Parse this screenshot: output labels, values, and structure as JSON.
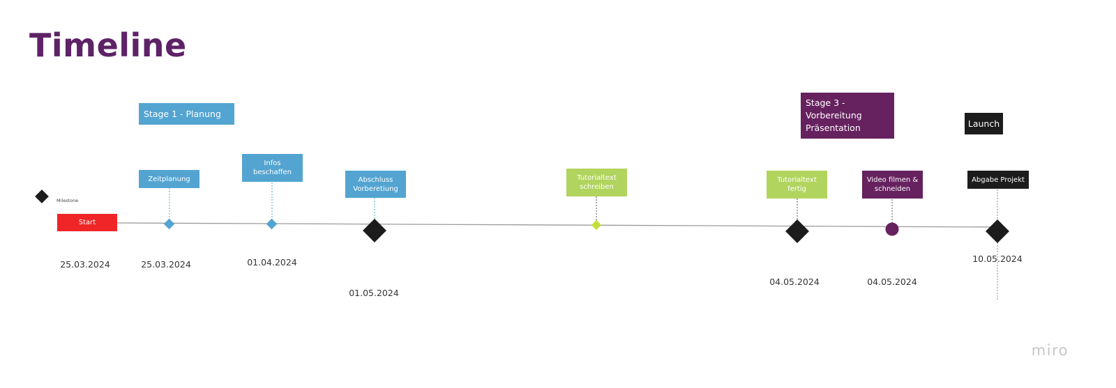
{
  "title": "Timeline",
  "legend": {
    "label": "Milestone"
  },
  "stages": {
    "stage1": "Stage 1 - Planung",
    "stage3": "Stage 3 - Vorbereitung Präsentation",
    "launch": "Launch"
  },
  "start": {
    "label": "Start",
    "date": "25.03.2024"
  },
  "events": [
    {
      "label": "Zeitplanung",
      "date": "25.03.2024",
      "color": "#53a4d1",
      "marker": "small-diamond"
    },
    {
      "label": "Infos beschaffen",
      "date": "01.04.2024",
      "color": "#53a4d1",
      "marker": "small-diamond"
    },
    {
      "label": "Abschluss Vorberetiung",
      "date": "01.05.2024",
      "color": "#53a4d1",
      "marker": "milestone"
    },
    {
      "label": "Tutorialtext schreiben",
      "date": "",
      "color": "#b1d45e",
      "marker": "small-diamond"
    },
    {
      "label": "Tutorialtext fertig",
      "date": "04.05.2024",
      "color": "#b1d45e",
      "marker": "milestone"
    },
    {
      "label": "Video filmen & schneiden",
      "date": "04.05.2024",
      "color": "#66215f",
      "marker": "circle"
    },
    {
      "label": "Abgabe Projekt",
      "date": "10.05.2024",
      "color": "#1c1c1c",
      "marker": "milestone"
    }
  ],
  "watermark": "miro"
}
